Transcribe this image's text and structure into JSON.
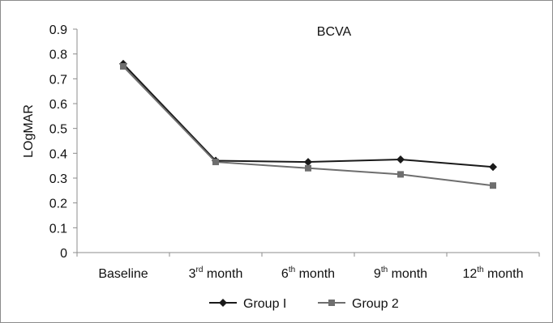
{
  "chart_data": {
    "type": "line",
    "title": "BCVA",
    "ylabel": "LOgMAR",
    "xlabel": "",
    "ylim": [
      0,
      0.9
    ],
    "yticks": [
      "0",
      "0.1",
      "0.2",
      "0.3",
      "0.4",
      "0.5",
      "0.6",
      "0.7",
      "0.8",
      "0.9"
    ],
    "categories": [
      {
        "base": "Baseline",
        "sup": "",
        "rest": ""
      },
      {
        "base": "3",
        "sup": "rd",
        "rest": " month"
      },
      {
        "base": "6",
        "sup": "th",
        "rest": " month"
      },
      {
        "base": "9",
        "sup": "th",
        "rest": " month"
      },
      {
        "base": "12",
        "sup": "th",
        "rest": " month"
      }
    ],
    "series": [
      {
        "name": "Group 1",
        "label": "Group I",
        "marker": "diamond",
        "color": "#1a1a1a",
        "values": [
          0.76,
          0.37,
          0.365,
          0.375,
          0.345
        ]
      },
      {
        "name": "Group 2",
        "label": "Group 2",
        "marker": "square",
        "color": "#6e6e6e",
        "values": [
          0.75,
          0.365,
          0.34,
          0.315,
          0.27
        ]
      }
    ],
    "grid": false,
    "legend": "bottom"
  }
}
